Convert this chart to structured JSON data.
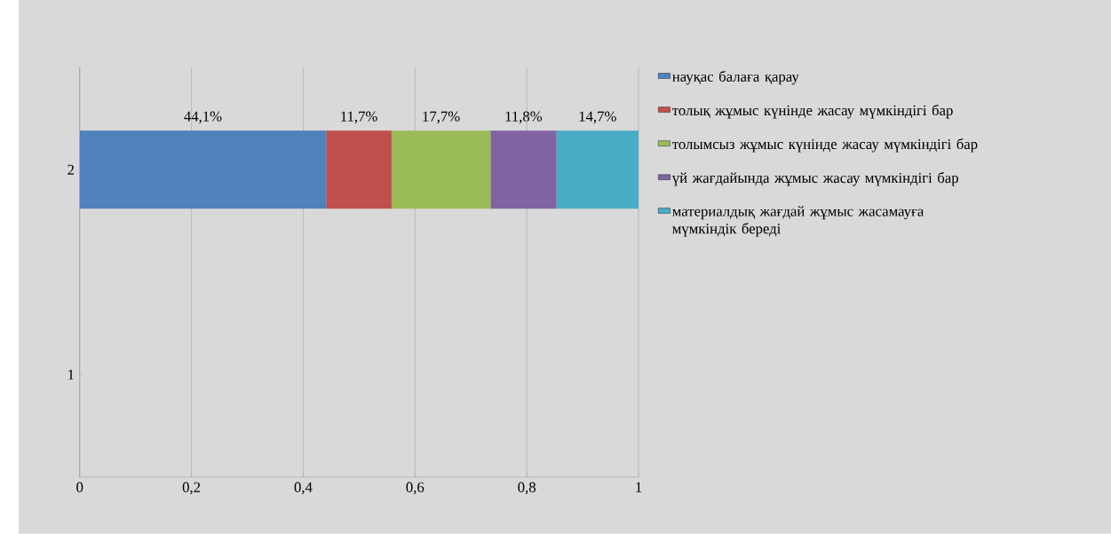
{
  "chart_data": {
    "type": "bar",
    "orientation": "horizontal",
    "stacked": true,
    "categories": [
      "2",
      "1"
    ],
    "series": [
      {
        "name": "науқас  балаға қарау",
        "color": "#4f81bd",
        "values": [
          0.441,
          null
        ],
        "value_labels": [
          "44,1%",
          null
        ]
      },
      {
        "name": "толық жұмыс күнінде жасау мүмкіндігі бар",
        "color": "#c0504d",
        "values": [
          0.117,
          null
        ],
        "value_labels": [
          "11,7%",
          null
        ]
      },
      {
        "name": "толымсыз жұмыс күнінде жасау мүмкіндігі бар",
        "color": "#9bbb59",
        "values": [
          0.177,
          null
        ],
        "value_labels": [
          "17,7%",
          null
        ]
      },
      {
        "name": "үй жағдайында жұмыс жасау мүмкіндігі бар",
        "color": "#8064a2",
        "values": [
          0.118,
          null
        ],
        "value_labels": [
          "11,8%",
          null
        ]
      },
      {
        "name": "материалдық жағдай жұмыс жасамауға мүмкіндік береді",
        "color": "#4bacc6",
        "values": [
          0.147,
          null
        ],
        "value_labels": [
          "14,7%",
          null
        ]
      }
    ],
    "xlim": [
      0,
      1
    ],
    "xticks": [
      0,
      {
        "value": 0.2,
        "label": "0,2"
      },
      {
        "value": 0.4,
        "label": "0,4"
      },
      {
        "value": 0.6,
        "label": "0,6"
      },
      {
        "value": 0.8,
        "label": "0,8"
      },
      1
    ],
    "grid": "x",
    "legend": "right"
  }
}
